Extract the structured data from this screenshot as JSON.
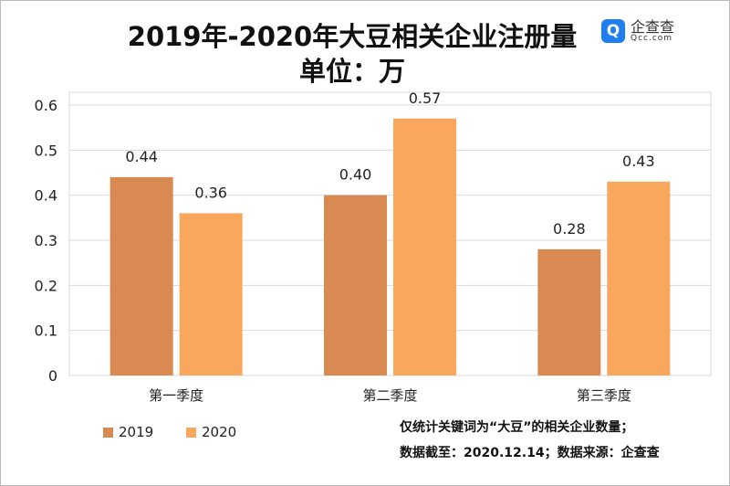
{
  "title": "2019年-2020年大豆相关企业注册量",
  "subtitle": "单位：万",
  "logo": {
    "cn": "企查查",
    "en": "Qcc.com",
    "icon": "qcc-q-icon"
  },
  "notes": [
    "仅统计关键词为“大豆”的相关企业数量；",
    "数据截至：2020.12.14；数据来源：企查查"
  ],
  "chart_data": {
    "type": "bar",
    "title": "2019年-2020年大豆相关企业注册量",
    "ylabel": "单位：万",
    "categories": [
      "第一季度",
      "第二季度",
      "第三季度"
    ],
    "series": [
      {
        "name": "2019",
        "values": [
          0.44,
          0.4,
          0.28
        ],
        "color": "#D98A52"
      },
      {
        "name": "2020",
        "values": [
          0.36,
          0.57,
          0.43
        ],
        "color": "#F9A75C"
      }
    ],
    "ylim": [
      0,
      0.6
    ],
    "yticks": [
      "0",
      "0.1",
      "0.2",
      "0.3",
      "0.4",
      "0.5",
      "0.6"
    ],
    "data_labels": [
      [
        "0.44",
        "0.40",
        "0.28"
      ],
      [
        "0.36",
        "0.57",
        "0.43"
      ]
    ],
    "grid": true,
    "legend": "bottom-left"
  }
}
